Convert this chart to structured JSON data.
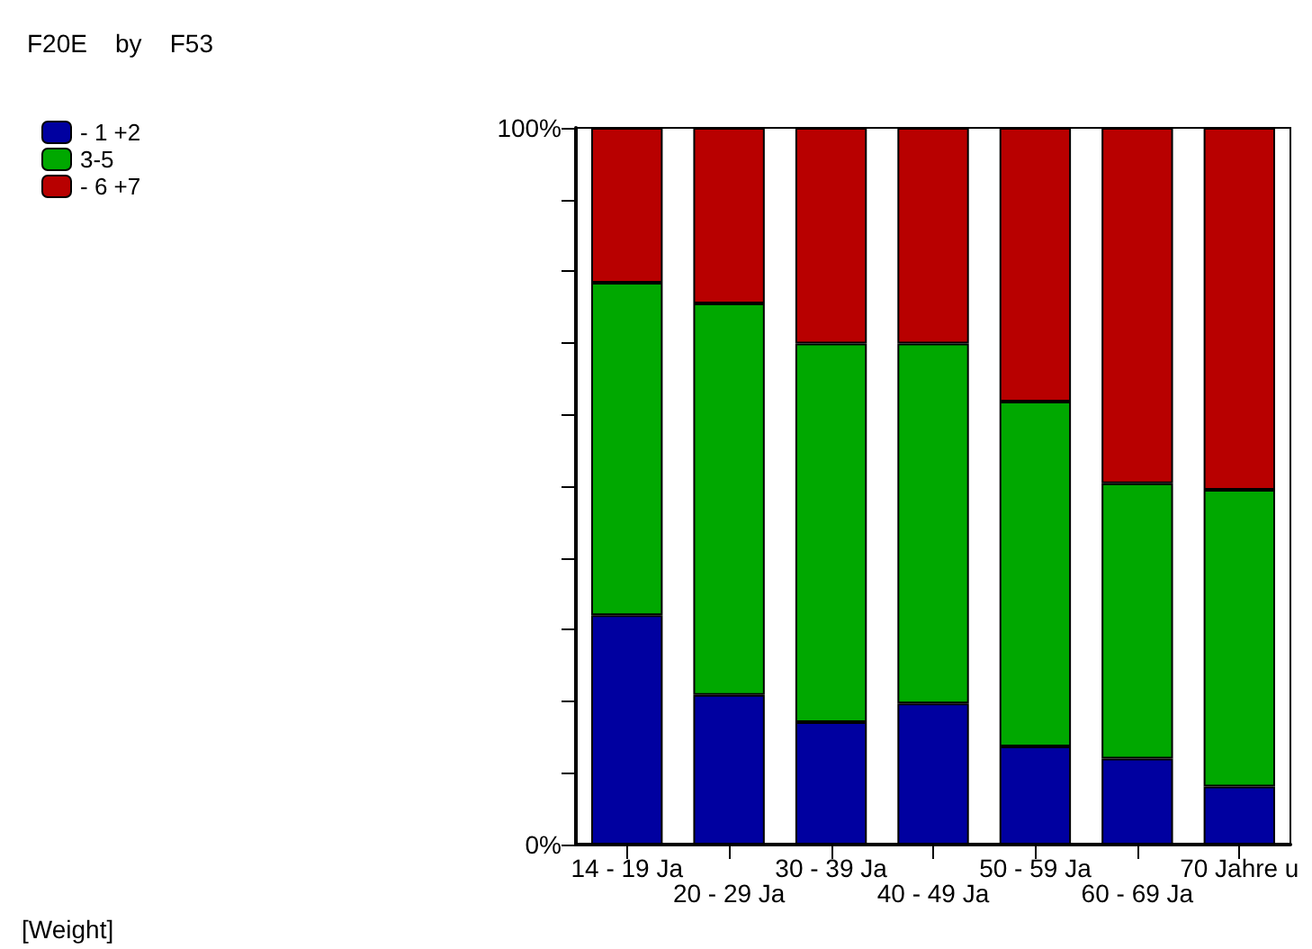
{
  "chart_data": {
    "type": "bar",
    "title": "F20E    by    F53",
    "stacked": true,
    "categories": [
      "14 - 19 Ja",
      "20 - 29 Ja",
      "30 - 39 Ja",
      "40 - 49 Ja",
      "50 - 59 Ja",
      "60 - 69 Ja",
      "70 Jahre u"
    ],
    "series": [
      {
        "name": "- 1 +2",
        "color": "#0000a0",
        "values": [
          32.0,
          20.9,
          17.1,
          19.7,
          13.7,
          12.0,
          8.1
        ]
      },
      {
        "name": "3-5",
        "color": "#00a800",
        "values": [
          46.4,
          54.6,
          52.8,
          50.2,
          48.1,
          38.4,
          41.4
        ]
      },
      {
        "name": "- 6 +7",
        "color": "#b80000",
        "values": [
          21.6,
          24.5,
          30.1,
          30.1,
          38.2,
          49.6,
          50.5
        ]
      }
    ],
    "ylim": [
      0,
      100
    ],
    "yticks": [
      {
        "value": 0,
        "label": "0%"
      },
      {
        "value": 10,
        "label": null
      },
      {
        "value": 20,
        "label": null
      },
      {
        "value": 30,
        "label": null
      },
      {
        "value": 40,
        "label": null
      },
      {
        "value": 50,
        "label": null
      },
      {
        "value": 60,
        "label": null
      },
      {
        "value": 70,
        "label": null
      },
      {
        "value": 80,
        "label": null
      },
      {
        "value": 90,
        "label": null
      },
      {
        "value": 100,
        "label": "100%"
      }
    ],
    "grid": false,
    "legend": "top left",
    "annotations": [
      "[Weight]"
    ]
  }
}
